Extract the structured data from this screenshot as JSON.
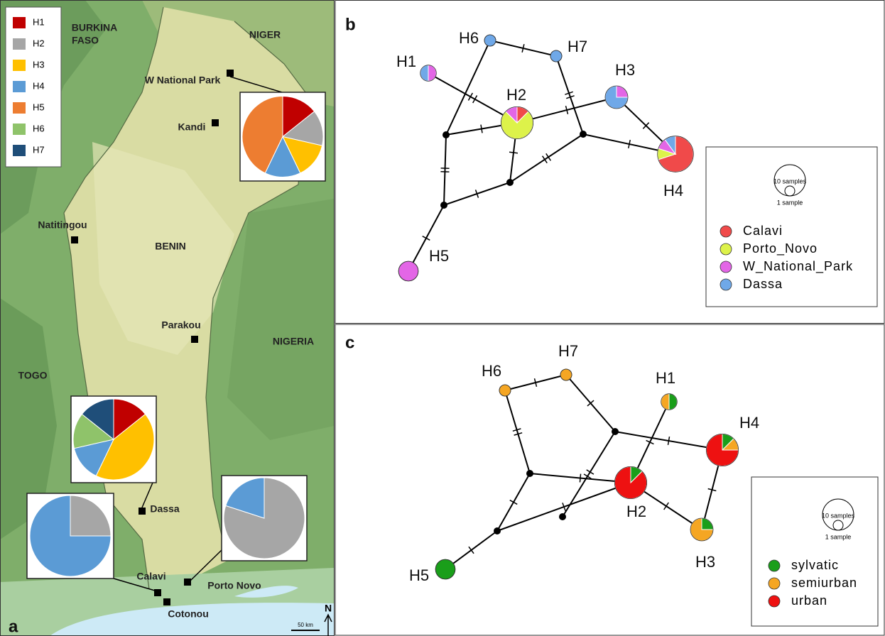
{
  "panel_a": {
    "label": "a",
    "legend": [
      {
        "label": "H1",
        "color": "#c00000"
      },
      {
        "label": "H2",
        "color": "#a6a6a6"
      },
      {
        "label": "H3",
        "color": "#ffc000"
      },
      {
        "label": "H4",
        "color": "#5b9bd5"
      },
      {
        "label": "H5",
        "color": "#ed7d31"
      },
      {
        "label": "H6",
        "color": "#8fc36a"
      },
      {
        "label": "H7",
        "color": "#1f4e79"
      }
    ],
    "places": [
      "BURKINA",
      "FASO",
      "NIGER",
      "W National Park",
      "Kandi",
      "Natitingou",
      "BENIN",
      "Parakou",
      "NIGERIA",
      "TOGO",
      "Dassa",
      "Calavi",
      "Porto Novo",
      "Cotonou"
    ],
    "pies": [
      {
        "counts": [
          1,
          1,
          1,
          1,
          3,
          0,
          0
        ]
      },
      {
        "counts": [
          1,
          0,
          3,
          1,
          0,
          1,
          1
        ]
      },
      {
        "counts": [
          0,
          1,
          0,
          3,
          0,
          0,
          0
        ]
      },
      {
        "counts": [
          0,
          4,
          0,
          1,
          0,
          0,
          0
        ]
      }
    ],
    "scale": "50 km",
    "north": "N"
  },
  "panel_b": {
    "label": "b",
    "groups": [
      {
        "label": "Calavi",
        "color": "#f04a4a"
      },
      {
        "label": "Porto_Novo",
        "color": "#ddf24a"
      },
      {
        "label": "W_National_Park",
        "color": "#e366e6"
      },
      {
        "label": "Dassa",
        "color": "#6fa8e8"
      }
    ],
    "size_legend": {
      "large": "10 samples",
      "small": "1 sample"
    },
    "nodes": [
      {
        "label": "H1",
        "counts": [
          0,
          0,
          1,
          1
        ]
      },
      {
        "label": "H2",
        "counts": [
          1,
          6,
          1,
          0
        ]
      },
      {
        "label": "H3",
        "counts": [
          0,
          0,
          1,
          3
        ]
      },
      {
        "label": "H4",
        "counts": [
          7,
          1,
          1,
          1
        ]
      },
      {
        "label": "H5",
        "counts": [
          0,
          0,
          3,
          0
        ]
      },
      {
        "label": "H6",
        "counts": [
          0,
          0,
          0,
          1
        ]
      },
      {
        "label": "H7",
        "counts": [
          0,
          0,
          0,
          1
        ]
      }
    ]
  },
  "panel_c": {
    "label": "c",
    "groups": [
      {
        "label": "sylvatic",
        "color": "#1a9e1a"
      },
      {
        "label": "semiurban",
        "color": "#f5a623"
      },
      {
        "label": "urban",
        "color": "#ee1111"
      }
    ],
    "size_legend": {
      "large": "10 samples",
      "small": "1 sample"
    },
    "nodes": [
      {
        "label": "H1",
        "counts": [
          1,
          1,
          0
        ]
      },
      {
        "label": "H2",
        "counts": [
          1,
          0,
          7
        ]
      },
      {
        "label": "H3",
        "counts": [
          1,
          3,
          0
        ]
      },
      {
        "label": "H4",
        "counts": [
          1,
          1,
          6
        ]
      },
      {
        "label": "H5",
        "counts": [
          3,
          0,
          0
        ]
      },
      {
        "label": "H6",
        "counts": [
          0,
          1,
          0
        ]
      },
      {
        "label": "H7",
        "counts": [
          0,
          1,
          0
        ]
      }
    ]
  }
}
